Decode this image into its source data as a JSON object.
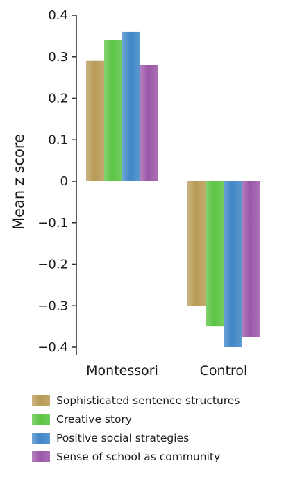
{
  "chart_data": {
    "type": "bar",
    "title": "",
    "xlabel": "",
    "ylabel": "Mean z score",
    "ylim": [
      -0.4,
      0.4
    ],
    "yticks": [
      0.4,
      0.3,
      0.2,
      0.1,
      0,
      -0.1,
      -0.2,
      -0.3,
      -0.4
    ],
    "ytick_labels": [
      "0.4",
      "0.3",
      "0.2",
      "0.1",
      "0",
      "−0.1",
      "−0.2",
      "−0.3",
      "−0.4"
    ],
    "categories": [
      "Montessori",
      "Control"
    ],
    "grid": false,
    "legend_position": "bottom",
    "series": [
      {
        "name": "Sophisticated sentence structures",
        "values": [
          0.29,
          -0.3
        ],
        "color": "#b89a55"
      },
      {
        "name": "Creative story",
        "values": [
          0.34,
          -0.35
        ],
        "color": "#5cc444"
      },
      {
        "name": "Positive social strategies",
        "values": [
          0.36,
          -0.4
        ],
        "color": "#3f86c7"
      },
      {
        "name": "Sense of school as community",
        "values": [
          0.28,
          -0.375
        ],
        "color": "#9c57a8"
      }
    ]
  }
}
